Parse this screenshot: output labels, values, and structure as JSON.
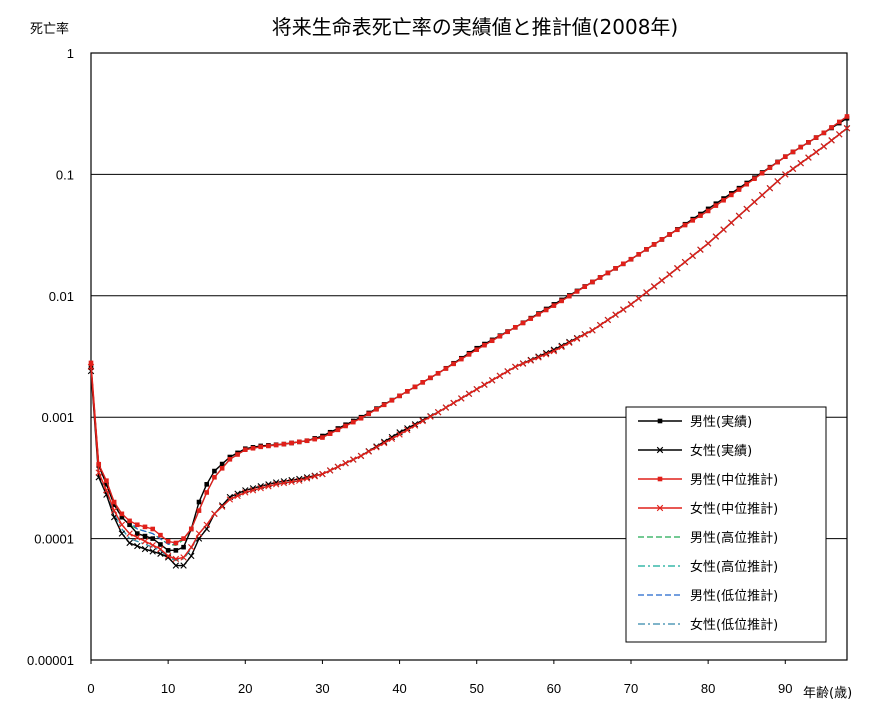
{
  "chart_data": {
    "type": "line",
    "title": "将来生命表死亡率の実績値と推計値(2008年)",
    "xlabel": "年齢(歳)",
    "ylabel": "死亡率",
    "xlim": [
      0,
      98
    ],
    "ylim": [
      1e-05,
      1
    ],
    "yscale": "log",
    "x_ticks": [
      "0",
      "10",
      "20",
      "30",
      "40",
      "50",
      "60",
      "70",
      "80",
      "90"
    ],
    "y_ticks": [
      "1",
      "0.1",
      "0.01",
      "0.001",
      "0.0001",
      "0.00001"
    ],
    "grid": "horizontal",
    "legend_position": "bottom-right",
    "colors": {
      "black": "#000000",
      "red": "#e0201a",
      "green": "#22aa55",
      "teal": "#11aa99",
      "blue": "#2266cc",
      "steel": "#3388aa"
    },
    "series": [
      {
        "name": "男性(実績)",
        "color": "#000000",
        "line": "solid",
        "marker": "square",
        "points": [
          [
            0,
            0.0026
          ],
          [
            1,
            0.0004
          ],
          [
            2,
            0.00028
          ],
          [
            3,
            0.00019
          ],
          [
            4,
            0.00015
          ],
          [
            5,
            0.00013
          ],
          [
            6,
            0.00011
          ],
          [
            8,
            0.0001
          ],
          [
            10,
            8e-05
          ],
          [
            11,
            8e-05
          ],
          [
            12,
            8.5e-05
          ],
          [
            13,
            0.00012
          ],
          [
            14,
            0.0002
          ],
          [
            15,
            0.00028
          ],
          [
            16,
            0.00036
          ],
          [
            18,
            0.00047
          ],
          [
            20,
            0.00055
          ],
          [
            22,
            0.00058
          ],
          [
            25,
            0.0006
          ],
          [
            28,
            0.00064
          ],
          [
            30,
            0.0007
          ],
          [
            35,
            0.001
          ],
          [
            40,
            0.0015
          ],
          [
            45,
            0.0023
          ],
          [
            50,
            0.0037
          ],
          [
            55,
            0.0055
          ],
          [
            60,
            0.0085
          ],
          [
            65,
            0.013
          ],
          [
            70,
            0.02
          ],
          [
            75,
            0.032
          ],
          [
            80,
            0.052
          ],
          [
            85,
            0.085
          ],
          [
            90,
            0.14
          ],
          [
            95,
            0.22
          ],
          [
            98,
            0.29
          ]
        ]
      },
      {
        "name": "女性(実績)",
        "color": "#000000",
        "line": "solid",
        "marker": "x",
        "points": [
          [
            0,
            0.0024
          ],
          [
            1,
            0.00032
          ],
          [
            2,
            0.00023
          ],
          [
            3,
            0.00015
          ],
          [
            4,
            0.00011
          ],
          [
            5,
            9.2e-05
          ],
          [
            7,
            8.2e-05
          ],
          [
            9,
            7.5e-05
          ],
          [
            10,
            7e-05
          ],
          [
            11,
            6e-05
          ],
          [
            12,
            6e-05
          ],
          [
            13,
            7.2e-05
          ],
          [
            14,
            0.0001
          ],
          [
            15,
            0.00012
          ],
          [
            16,
            0.00016
          ],
          [
            18,
            0.00022
          ],
          [
            20,
            0.00025
          ],
          [
            22,
            0.00027
          ],
          [
            24,
            0.00029
          ],
          [
            27,
            0.00031
          ],
          [
            30,
            0.00034
          ],
          [
            35,
            0.00048
          ],
          [
            40,
            0.00075
          ],
          [
            45,
            0.0011
          ],
          [
            50,
            0.0017
          ],
          [
            55,
            0.0026
          ],
          [
            60,
            0.0036
          ],
          [
            65,
            0.0052
          ],
          [
            70,
            0.0085
          ],
          [
            75,
            0.015
          ],
          [
            80,
            0.027
          ],
          [
            85,
            0.052
          ],
          [
            90,
            0.1
          ],
          [
            95,
            0.17
          ],
          [
            98,
            0.24
          ]
        ]
      },
      {
        "name": "男性(中位推計)",
        "color": "#e0201a",
        "line": "solid",
        "marker": "square",
        "points": [
          [
            0,
            0.0028
          ],
          [
            1,
            0.00041
          ],
          [
            2,
            0.0003
          ],
          [
            3,
            0.0002
          ],
          [
            4,
            0.00016
          ],
          [
            5,
            0.00014
          ],
          [
            6,
            0.00013
          ],
          [
            8,
            0.00012
          ],
          [
            10,
            9.5e-05
          ],
          [
            11,
            9.2e-05
          ],
          [
            12,
            0.0001
          ],
          [
            13,
            0.00012
          ],
          [
            14,
            0.00017
          ],
          [
            15,
            0.00024
          ],
          [
            16,
            0.00032
          ],
          [
            18,
            0.00045
          ],
          [
            20,
            0.00054
          ],
          [
            22,
            0.00057
          ],
          [
            25,
            0.0006
          ],
          [
            28,
            0.00064
          ],
          [
            30,
            0.00068
          ],
          [
            35,
            0.00098
          ],
          [
            40,
            0.0015
          ],
          [
            45,
            0.0023
          ],
          [
            50,
            0.0036
          ],
          [
            55,
            0.0055
          ],
          [
            60,
            0.0083
          ],
          [
            65,
            0.013
          ],
          [
            70,
            0.02
          ],
          [
            75,
            0.032
          ],
          [
            80,
            0.05
          ],
          [
            85,
            0.083
          ],
          [
            90,
            0.14
          ],
          [
            95,
            0.22
          ],
          [
            98,
            0.3
          ]
        ]
      },
      {
        "name": "女性(中位推計)",
        "color": "#e0201a",
        "line": "solid",
        "marker": "x",
        "points": [
          [
            0,
            0.0026
          ],
          [
            1,
            0.00035
          ],
          [
            2,
            0.00025
          ],
          [
            3,
            0.00017
          ],
          [
            4,
            0.00013
          ],
          [
            5,
            0.00011
          ],
          [
            7,
            9.5e-05
          ],
          [
            9,
            8.2e-05
          ],
          [
            10,
            7.2e-05
          ],
          [
            11,
            6.8e-05
          ],
          [
            12,
            7e-05
          ],
          [
            13,
            8.5e-05
          ],
          [
            14,
            0.00011
          ],
          [
            15,
            0.00013
          ],
          [
            16,
            0.00016
          ],
          [
            18,
            0.00021
          ],
          [
            20,
            0.00024
          ],
          [
            22,
            0.00026
          ],
          [
            24,
            0.00028
          ],
          [
            27,
            0.0003
          ],
          [
            30,
            0.00034
          ],
          [
            35,
            0.00048
          ],
          [
            40,
            0.00072
          ],
          [
            45,
            0.0011
          ],
          [
            50,
            0.0017
          ],
          [
            55,
            0.0026
          ],
          [
            60,
            0.0035
          ],
          [
            65,
            0.0052
          ],
          [
            70,
            0.0085
          ],
          [
            75,
            0.015
          ],
          [
            80,
            0.027
          ],
          [
            85,
            0.052
          ],
          [
            90,
            0.1
          ],
          [
            95,
            0.17
          ],
          [
            98,
            0.24
          ]
        ]
      },
      {
        "name": "男性(高位推計)",
        "color": "#22aa55",
        "line": "dashed",
        "marker": "none",
        "points": [
          [
            0,
            0.0027
          ],
          [
            1,
            0.0004
          ],
          [
            2,
            0.00029
          ],
          [
            3,
            0.0002
          ],
          [
            4,
            0.00015
          ],
          [
            5,
            0.00013
          ],
          [
            6,
            0.00012
          ],
          [
            8,
            0.00011
          ],
          [
            10,
            9e-05
          ],
          [
            11,
            8.8e-05
          ],
          [
            12,
            9.8e-05
          ],
          [
            13,
            0.00012
          ],
          [
            14,
            0.00017
          ],
          [
            15,
            0.00024
          ],
          [
            16,
            0.00032
          ],
          [
            18,
            0.00045
          ],
          [
            20,
            0.00054
          ],
          [
            22,
            0.00057
          ],
          [
            25,
            0.0006
          ],
          [
            28,
            0.00064
          ],
          [
            30,
            0.00068
          ],
          [
            35,
            0.00098
          ],
          [
            40,
            0.0015
          ],
          [
            45,
            0.0023
          ],
          [
            50,
            0.0036
          ],
          [
            55,
            0.0055
          ],
          [
            60,
            0.0083
          ],
          [
            65,
            0.013
          ],
          [
            70,
            0.02
          ],
          [
            75,
            0.032
          ],
          [
            80,
            0.05
          ],
          [
            85,
            0.083
          ],
          [
            90,
            0.14
          ],
          [
            95,
            0.22
          ],
          [
            98,
            0.29
          ]
        ]
      },
      {
        "name": "女性(高位推計)",
        "color": "#11aa99",
        "line": "dashdot",
        "marker": "none",
        "points": [
          [
            0,
            0.0025
          ],
          [
            1,
            0.00034
          ],
          [
            2,
            0.00024
          ],
          [
            3,
            0.00016
          ],
          [
            4,
            0.00012
          ],
          [
            5,
            0.0001
          ],
          [
            7,
            9e-05
          ],
          [
            9,
            8e-05
          ],
          [
            10,
            7e-05
          ],
          [
            11,
            6.6e-05
          ],
          [
            12,
            6.8e-05
          ],
          [
            13,
            8.2e-05
          ],
          [
            14,
            0.00011
          ],
          [
            15,
            0.00013
          ],
          [
            16,
            0.00016
          ],
          [
            18,
            0.00021
          ],
          [
            20,
            0.00024
          ],
          [
            22,
            0.00026
          ],
          [
            24,
            0.00028
          ],
          [
            27,
            0.0003
          ],
          [
            30,
            0.00034
          ],
          [
            35,
            0.00048
          ],
          [
            40,
            0.00072
          ],
          [
            45,
            0.0011
          ],
          [
            50,
            0.0017
          ],
          [
            55,
            0.0026
          ],
          [
            60,
            0.0035
          ],
          [
            65,
            0.0052
          ],
          [
            70,
            0.0085
          ],
          [
            75,
            0.015
          ],
          [
            80,
            0.027
          ],
          [
            85,
            0.052
          ],
          [
            90,
            0.1
          ],
          [
            95,
            0.17
          ],
          [
            98,
            0.24
          ]
        ]
      },
      {
        "name": "男性(低位推計)",
        "color": "#2266cc",
        "line": "dashed",
        "marker": "none",
        "points": [
          [
            0,
            0.0027
          ],
          [
            1,
            0.0004
          ],
          [
            2,
            0.0003
          ],
          [
            3,
            0.0002
          ],
          [
            4,
            0.00016
          ],
          [
            5,
            0.00014
          ],
          [
            6,
            0.00012
          ],
          [
            8,
            0.00011
          ],
          [
            10,
            9e-05
          ],
          [
            11,
            9e-05
          ],
          [
            12,
            0.0001
          ],
          [
            13,
            0.00012
          ],
          [
            14,
            0.00017
          ],
          [
            15,
            0.00024
          ],
          [
            16,
            0.00032
          ],
          [
            18,
            0.00045
          ],
          [
            20,
            0.00054
          ],
          [
            22,
            0.00057
          ],
          [
            25,
            0.0006
          ],
          [
            28,
            0.00064
          ],
          [
            30,
            0.00068
          ],
          [
            35,
            0.00098
          ],
          [
            40,
            0.0015
          ],
          [
            45,
            0.0023
          ],
          [
            50,
            0.0036
          ],
          [
            55,
            0.0055
          ],
          [
            60,
            0.0083
          ],
          [
            65,
            0.013
          ],
          [
            70,
            0.02
          ],
          [
            75,
            0.032
          ],
          [
            80,
            0.05
          ],
          [
            85,
            0.083
          ],
          [
            90,
            0.14
          ],
          [
            95,
            0.22
          ],
          [
            98,
            0.3
          ]
        ]
      },
      {
        "name": "女性(低位推計)",
        "color": "#3388aa",
        "line": "dashdot",
        "marker": "none",
        "points": [
          [
            0,
            0.0025
          ],
          [
            1,
            0.00034
          ],
          [
            2,
            0.00024
          ],
          [
            3,
            0.00016
          ],
          [
            4,
            0.00012
          ],
          [
            5,
            0.0001
          ],
          [
            7,
            9e-05
          ],
          [
            9,
            8e-05
          ],
          [
            10,
            7e-05
          ],
          [
            11,
            6.7e-05
          ],
          [
            12,
            6.9e-05
          ],
          [
            13,
            8.3e-05
          ],
          [
            14,
            0.00011
          ],
          [
            15,
            0.00013
          ],
          [
            16,
            0.00016
          ],
          [
            18,
            0.00021
          ],
          [
            20,
            0.00024
          ],
          [
            22,
            0.00026
          ],
          [
            24,
            0.00028
          ],
          [
            27,
            0.0003
          ],
          [
            30,
            0.00034
          ],
          [
            35,
            0.00048
          ],
          [
            40,
            0.00072
          ],
          [
            45,
            0.0011
          ],
          [
            50,
            0.0017
          ],
          [
            55,
            0.0026
          ],
          [
            60,
            0.0035
          ],
          [
            65,
            0.0052
          ],
          [
            70,
            0.0085
          ],
          [
            75,
            0.015
          ],
          [
            80,
            0.027
          ],
          [
            85,
            0.052
          ],
          [
            90,
            0.1
          ],
          [
            95,
            0.17
          ],
          [
            98,
            0.24
          ]
        ]
      }
    ]
  }
}
